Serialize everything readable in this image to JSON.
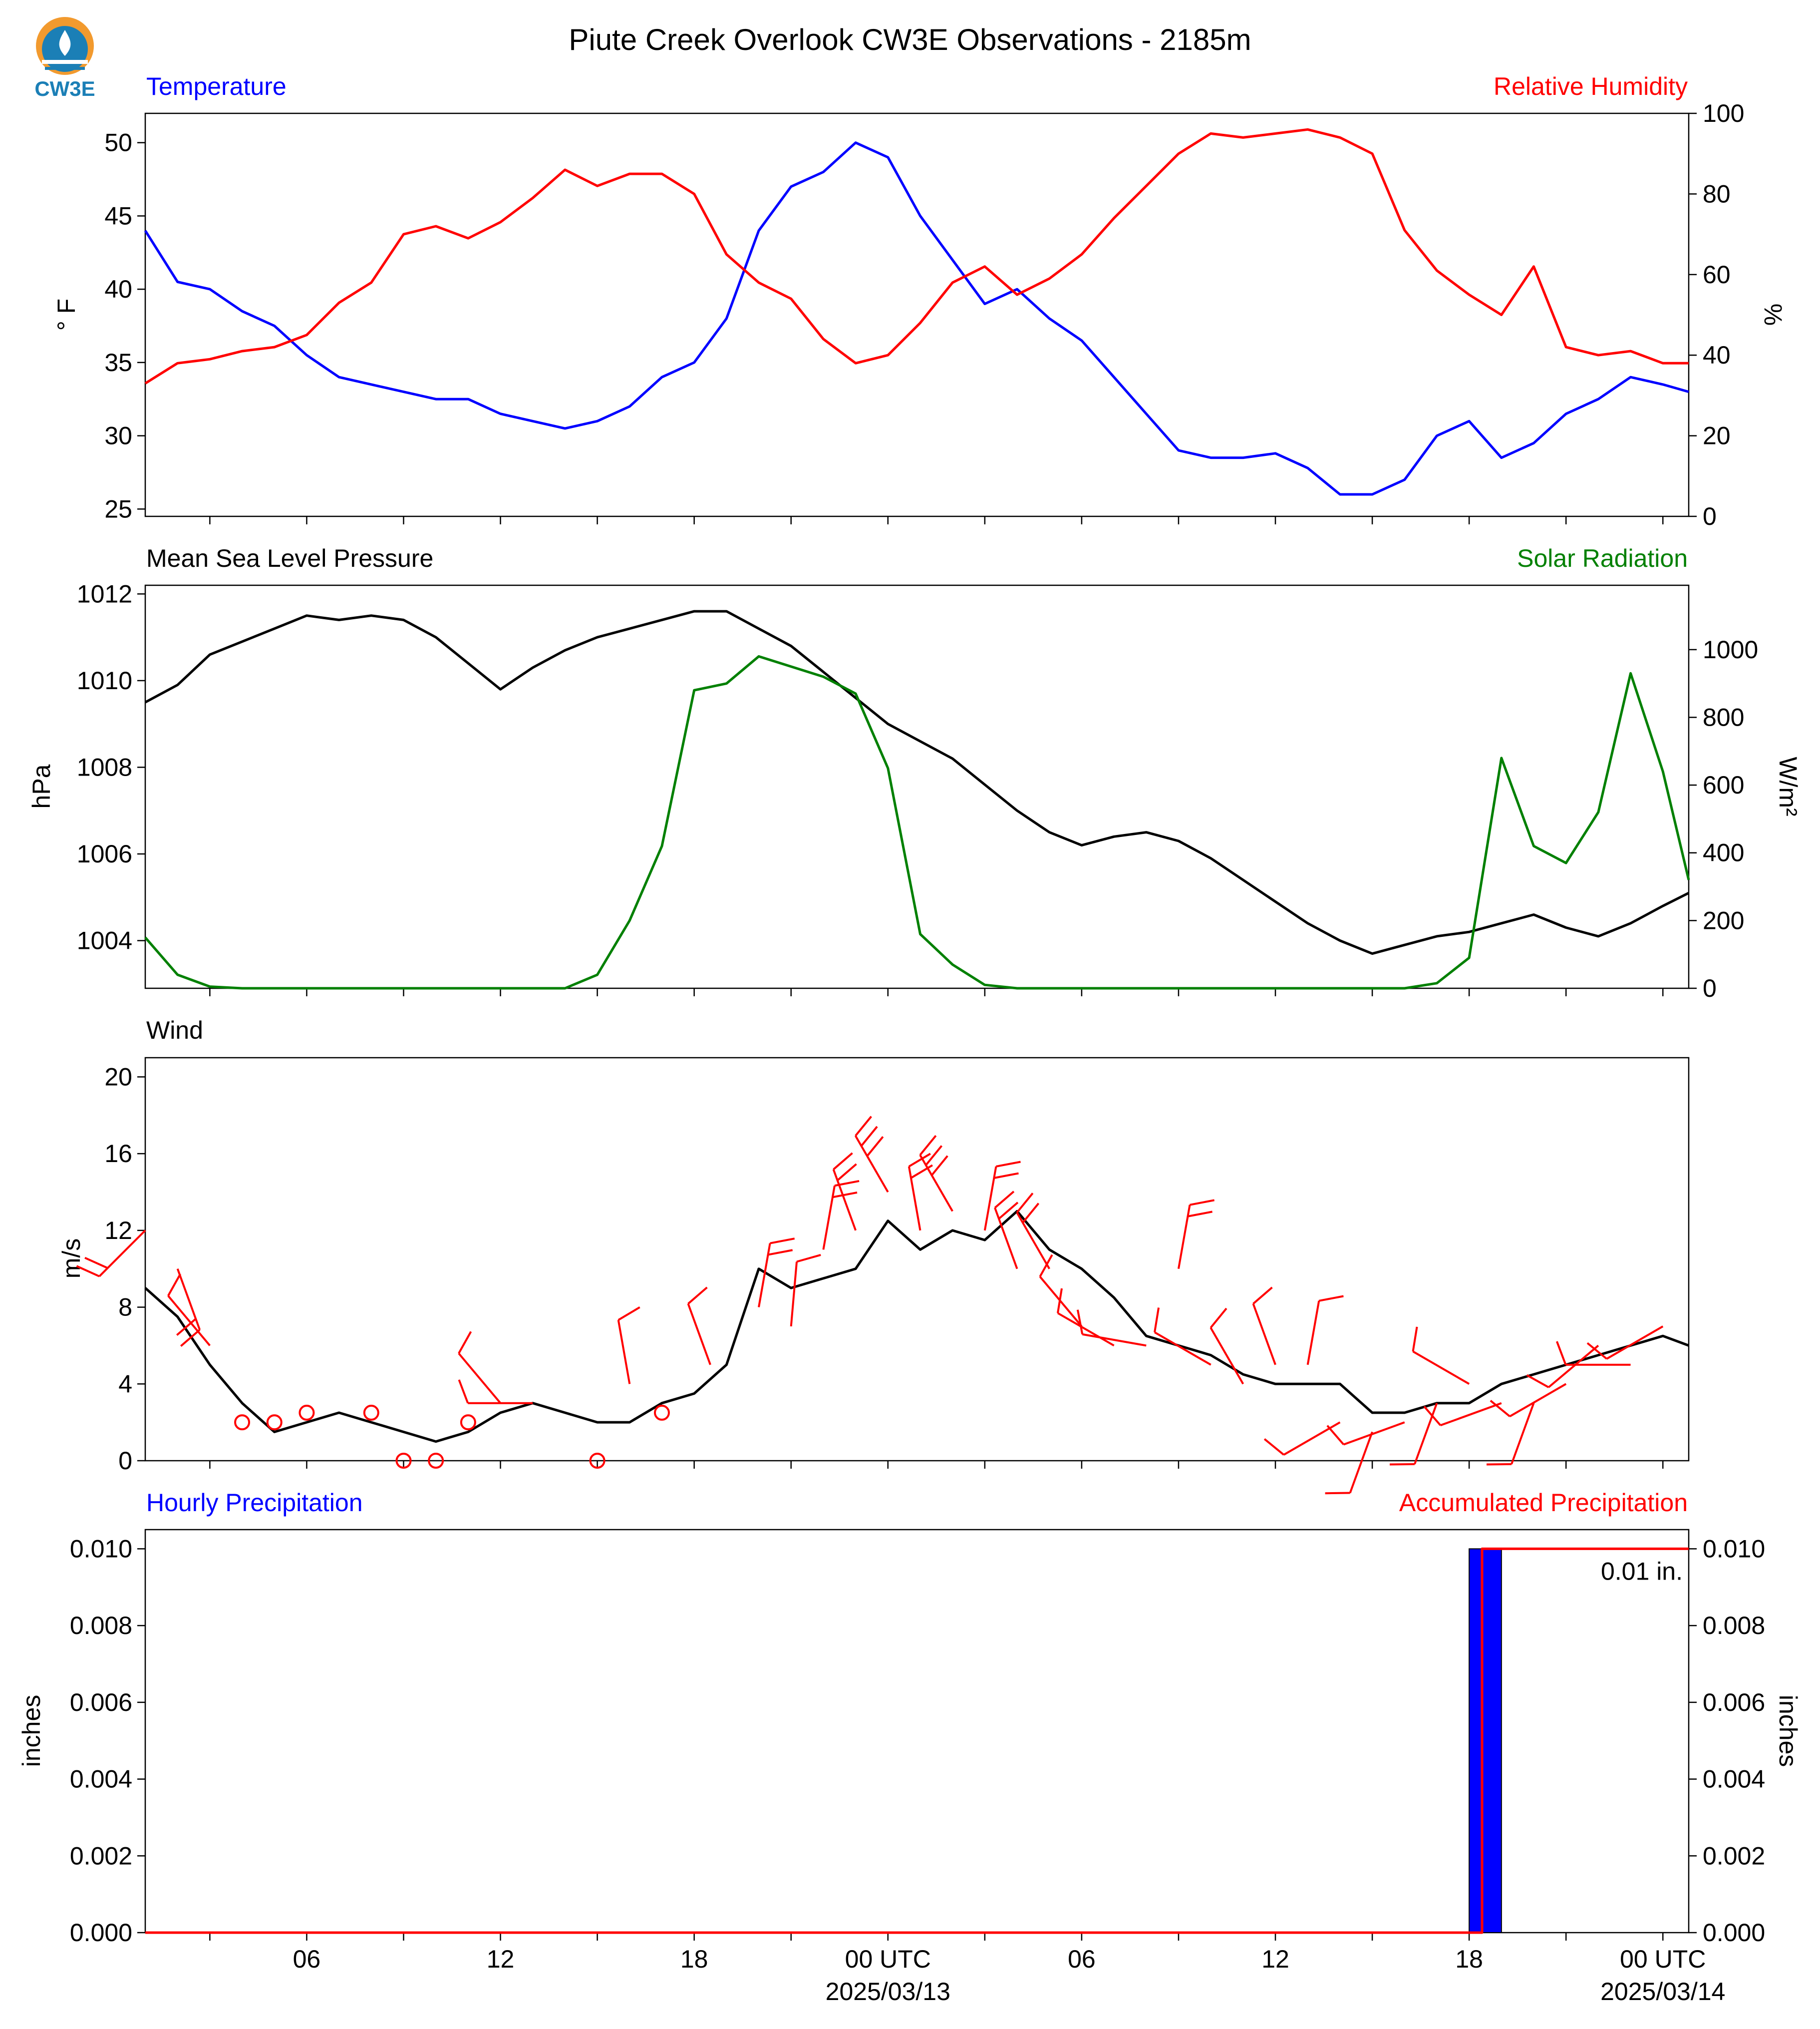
{
  "figure": {
    "title": "Piute Creek Overlook CW3E Observations - 2185m",
    "logo_text": "CW3E"
  },
  "colors": {
    "temperature": "#0000ff",
    "humidity": "#ff0000",
    "pressure": "#000000",
    "solar": "#008000",
    "wind_speed": "#000000",
    "wind_barb": "#ff0000",
    "hourly_precip_bar": "#0000ff",
    "accumulated_precip": "#ff0000",
    "logo_orange": "#f29a2e",
    "logo_blue": "#1b7fb6"
  },
  "x_axis": {
    "start_hour": 0,
    "end_hour": 47,
    "ticks": [
      {
        "hour": 5,
        "label": "06",
        "sub": ""
      },
      {
        "hour": 11,
        "label": "12",
        "sub": ""
      },
      {
        "hour": 17,
        "label": "18",
        "sub": ""
      },
      {
        "hour": 23,
        "label": "00 UTC",
        "sub": "2025/03/13"
      },
      {
        "hour": 29,
        "label": "06",
        "sub": ""
      },
      {
        "hour": 35,
        "label": "12",
        "sub": ""
      },
      {
        "hour": 41,
        "label": "18",
        "sub": ""
      },
      {
        "hour": 47,
        "label": "00 UTC",
        "sub": "2025/03/14"
      }
    ]
  },
  "chart_data": [
    {
      "type": "line",
      "panel": "temperature_humidity",
      "left_title": "Temperature",
      "right_title": "Relative Humidity",
      "ylabel": "° F",
      "ylabel_right": "%",
      "ylim": [
        24.5,
        52
      ],
      "ylim_right": [
        0,
        100
      ],
      "yticks": [
        25,
        30,
        35,
        40,
        45,
        50
      ],
      "yticks_right": [
        0,
        20,
        40,
        60,
        80,
        100
      ],
      "x_hours": [
        0,
        1,
        2,
        3,
        4,
        5,
        6,
        7,
        8,
        9,
        10,
        11,
        12,
        13,
        14,
        15,
        16,
        17,
        18,
        19,
        20,
        21,
        22,
        23,
        24,
        25,
        26,
        27,
        28,
        29,
        30,
        31,
        32,
        33,
        34,
        35,
        36,
        37,
        38,
        39,
        40,
        41,
        42,
        43,
        44,
        45,
        46,
        47,
        47.8
      ],
      "series": [
        {
          "name": "Temperature",
          "axis": "left",
          "color_key": "temperature",
          "values": [
            44,
            40.5,
            40,
            38.5,
            37.5,
            35.5,
            34,
            33.5,
            33,
            32.5,
            32.5,
            31.5,
            31,
            30.5,
            31,
            32,
            34,
            35,
            38,
            44,
            47,
            48,
            50,
            49,
            45,
            42,
            39,
            40,
            38,
            36.5,
            34,
            31.5,
            29,
            28.5,
            28.5,
            28.8,
            27.8,
            26,
            26,
            27,
            30,
            31,
            28.5,
            29.5,
            31.5,
            32.5,
            34,
            33.5,
            33
          ]
        },
        {
          "name": "Relative Humidity",
          "axis": "right",
          "color_key": "humidity",
          "values": [
            33,
            38,
            39,
            41,
            42,
            45,
            53,
            58,
            70,
            72,
            69,
            73,
            79,
            86,
            82,
            85,
            85,
            80,
            65,
            58,
            54,
            44,
            38,
            40,
            48,
            58,
            62,
            55,
            59,
            65,
            74,
            82,
            90,
            95,
            94,
            95,
            96,
            94,
            90,
            71,
            61,
            55,
            50,
            62,
            42,
            40,
            41,
            38,
            38
          ]
        }
      ]
    },
    {
      "type": "line",
      "panel": "pressure_solar",
      "left_title": "Mean Sea Level Pressure",
      "right_title": "Solar Radiation",
      "ylabel": "hPa",
      "ylabel_right": "W/m²",
      "ylim": [
        1002.9,
        1012.2
      ],
      "ylim_right": [
        0,
        1190
      ],
      "yticks": [
        1004,
        1006,
        1008,
        1010,
        1012
      ],
      "yticks_right": [
        0,
        200,
        400,
        600,
        800,
        1000
      ],
      "x_hours": [
        0,
        1,
        2,
        3,
        4,
        5,
        6,
        7,
        8,
        9,
        10,
        11,
        12,
        13,
        14,
        15,
        16,
        17,
        18,
        19,
        20,
        21,
        22,
        23,
        24,
        25,
        26,
        27,
        28,
        29,
        30,
        31,
        32,
        33,
        34,
        35,
        36,
        37,
        38,
        39,
        40,
        41,
        42,
        43,
        44,
        45,
        46,
        47,
        47.8
      ],
      "series": [
        {
          "name": "Mean Sea Level Pressure",
          "axis": "left",
          "color_key": "pressure",
          "values": [
            1009.5,
            1009.9,
            1010.6,
            1010.9,
            1011.2,
            1011.5,
            1011.4,
            1011.5,
            1011.4,
            1011.0,
            1010.4,
            1009.8,
            1010.3,
            1010.7,
            1011.0,
            1011.2,
            1011.4,
            1011.6,
            1011.6,
            1011.2,
            1010.8,
            1010.2,
            1009.6,
            1009.0,
            1008.6,
            1008.2,
            1007.6,
            1007.0,
            1006.5,
            1006.2,
            1006.4,
            1006.5,
            1006.3,
            1005.9,
            1005.4,
            1004.9,
            1004.4,
            1004.0,
            1003.7,
            1003.9,
            1004.1,
            1004.2,
            1004.4,
            1004.6,
            1004.3,
            1004.1,
            1004.4,
            1004.8,
            1005.1
          ]
        },
        {
          "name": "Solar Radiation",
          "axis": "right",
          "color_key": "solar",
          "values": [
            150,
            40,
            5,
            0,
            0,
            0,
            0,
            0,
            0,
            0,
            0,
            0,
            0,
            0,
            40,
            200,
            420,
            880,
            900,
            980,
            950,
            920,
            870,
            650,
            160,
            70,
            10,
            0,
            0,
            0,
            0,
            0,
            0,
            0,
            0,
            0,
            0,
            0,
            0,
            0,
            15,
            90,
            680,
            420,
            370,
            520,
            930,
            640,
            320
          ]
        }
      ]
    },
    {
      "type": "line",
      "panel": "wind",
      "left_title": "Wind",
      "ylabel": "m/s",
      "ylim": [
        0,
        21
      ],
      "yticks": [
        0,
        4,
        8,
        12,
        16,
        20
      ],
      "x_hours": [
        0,
        1,
        2,
        3,
        4,
        5,
        6,
        7,
        8,
        9,
        10,
        11,
        12,
        13,
        14,
        15,
        16,
        17,
        18,
        19,
        20,
        21,
        22,
        23,
        24,
        25,
        26,
        27,
        28,
        29,
        30,
        31,
        32,
        33,
        34,
        35,
        36,
        37,
        38,
        39,
        40,
        41,
        42,
        43,
        44,
        45,
        46,
        47,
        47.8
      ],
      "series": [
        {
          "name": "Wind Speed",
          "axis": "left",
          "color_key": "wind_speed",
          "values": [
            9,
            7.5,
            5,
            3,
            1.5,
            2,
            2.5,
            2,
            1.5,
            1,
            1.5,
            2.5,
            3,
            2.5,
            2,
            2,
            3,
            3.5,
            5,
            10,
            9,
            9.5,
            10,
            12.5,
            11,
            12,
            11.5,
            13,
            11,
            10,
            8.5,
            6.5,
            6,
            5.5,
            4.5,
            4,
            4,
            4,
            2.5,
            2.5,
            3,
            3,
            4,
            4.5,
            5,
            5.5,
            6,
            6.5,
            6
          ]
        },
        {
          "name": "Wind Barbs",
          "axis": "left",
          "color_key": "wind_barb",
          "barbs": [
            {
              "hour": 0.0,
              "speed": 12,
              "dir": 225
            },
            {
              "hour": 1.0,
              "speed": 10,
              "dir": 160
            },
            {
              "hour": 2.0,
              "speed": 6,
              "dir": 320
            },
            {
              "hour": 3.0,
              "speed": 2,
              "dir": 0,
              "calm": true
            },
            {
              "hour": 4.0,
              "speed": 2,
              "dir": 0,
              "calm": true
            },
            {
              "hour": 5.0,
              "speed": 2.5,
              "dir": 0,
              "calm": true
            },
            {
              "hour": 7.0,
              "speed": 2.5,
              "dir": 0,
              "calm": true
            },
            {
              "hour": 8.0,
              "speed": 0,
              "dir": 0,
              "calm": true
            },
            {
              "hour": 9.0,
              "speed": 0,
              "dir": 0,
              "calm": true
            },
            {
              "hour": 10.0,
              "speed": 2,
              "dir": 0,
              "calm": true
            },
            {
              "hour": 11.0,
              "speed": 3,
              "dir": 320
            },
            {
              "hour": 12.0,
              "speed": 3,
              "dir": 270
            },
            {
              "hour": 14.0,
              "speed": 0,
              "dir": 0,
              "calm": true
            },
            {
              "hour": 15.0,
              "speed": 4,
              "dir": 350
            },
            {
              "hour": 16.0,
              "speed": 2.5,
              "dir": 0,
              "calm": true
            },
            {
              "hour": 17.5,
              "speed": 5,
              "dir": 340
            },
            {
              "hour": 19.0,
              "speed": 8,
              "dir": 10
            },
            {
              "hour": 20.0,
              "speed": 7,
              "dir": 5
            },
            {
              "hour": 21.0,
              "speed": 11,
              "dir": 10
            },
            {
              "hour": 22.0,
              "speed": 12,
              "dir": 340
            },
            {
              "hour": 23.0,
              "speed": 14,
              "dir": 330
            },
            {
              "hour": 24.0,
              "speed": 12,
              "dir": 350
            },
            {
              "hour": 25.0,
              "speed": 13,
              "dir": 330
            },
            {
              "hour": 26.0,
              "speed": 12,
              "dir": 10
            },
            {
              "hour": 27.0,
              "speed": 10,
              "dir": 340
            },
            {
              "hour": 28.0,
              "speed": 10,
              "dir": 330
            },
            {
              "hour": 29.0,
              "speed": 7,
              "dir": 320
            },
            {
              "hour": 30.0,
              "speed": 6,
              "dir": 300
            },
            {
              "hour": 31.0,
              "speed": 6,
              "dir": 280
            },
            {
              "hour": 32.0,
              "speed": 10,
              "dir": 10
            },
            {
              "hour": 33.0,
              "speed": 5,
              "dir": 300
            },
            {
              "hour": 34.0,
              "speed": 4,
              "dir": 330
            },
            {
              "hour": 35.0,
              "speed": 5,
              "dir": 340
            },
            {
              "hour": 36.0,
              "speed": 5,
              "dir": 10
            },
            {
              "hour": 37.0,
              "speed": 2,
              "dir": 240
            },
            {
              "hour": 38.0,
              "speed": 1.5,
              "dir": 200
            },
            {
              "hour": 39.0,
              "speed": 2,
              "dir": 250
            },
            {
              "hour": 40.0,
              "speed": 3,
              "dir": 200
            },
            {
              "hour": 41.0,
              "speed": 4,
              "dir": 300
            },
            {
              "hour": 42.0,
              "speed": 3,
              "dir": 250
            },
            {
              "hour": 43.0,
              "speed": 3,
              "dir": 200
            },
            {
              "hour": 44.0,
              "speed": 4,
              "dir": 240
            },
            {
              "hour": 45.0,
              "speed": 6,
              "dir": 230
            },
            {
              "hour": 46.0,
              "speed": 5,
              "dir": 270
            },
            {
              "hour": 47.0,
              "speed": 7,
              "dir": 240
            }
          ]
        }
      ]
    },
    {
      "type": "bar",
      "panel": "precipitation",
      "left_title": "Hourly Precipitation",
      "right_title": "Accumulated Precipitation",
      "ylabel": "inches",
      "ylabel_right": "inches",
      "ylim": [
        0,
        0.0105
      ],
      "ylim_right": [
        0,
        0.0105
      ],
      "yticks": [
        0.0,
        0.002,
        0.004,
        0.006,
        0.008,
        0.01
      ],
      "yticks_right": [
        0.0,
        0.002,
        0.004,
        0.006,
        0.008,
        0.01
      ],
      "ytick_labels": [
        "0.000",
        "0.002",
        "0.004",
        "0.006",
        "0.008",
        "0.010"
      ],
      "bars": [
        {
          "hour_start": 41.0,
          "hour_end": 42.0,
          "value": 0.01
        }
      ],
      "series": [
        {
          "name": "Accumulated Precipitation",
          "axis": "right",
          "color_key": "accumulated_precip",
          "x_hours": [
            0,
            41.4,
            41.4,
            47.8
          ],
          "values": [
            0,
            0,
            0.01,
            0.01
          ]
        }
      ],
      "annotation": "0.01 in."
    }
  ]
}
